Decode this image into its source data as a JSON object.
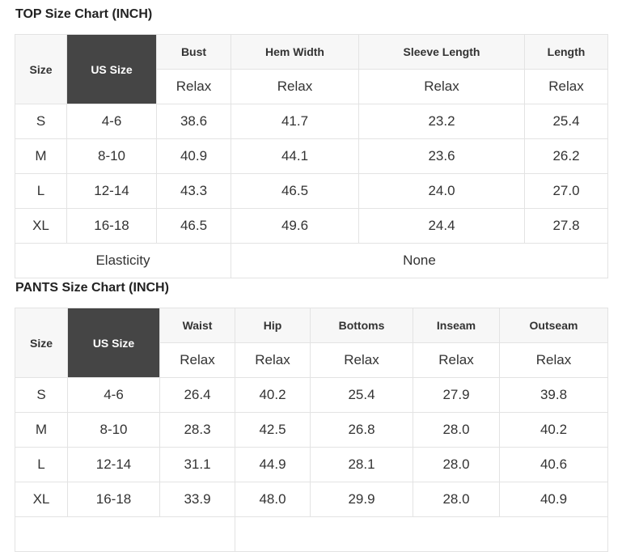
{
  "top": {
    "title": "TOP Size Chart (INCH)",
    "size_label": "Size",
    "us_label": "US Size",
    "columns": [
      "Bust",
      "Hem Width",
      "Sleeve Length",
      "Length"
    ],
    "fit": [
      "Relax",
      "Relax",
      "Relax",
      "Relax"
    ],
    "rows": [
      [
        "S",
        "4-6",
        "38.6",
        "41.7",
        "23.2",
        "25.4"
      ],
      [
        "M",
        "8-10",
        "40.9",
        "44.1",
        "23.6",
        "26.2"
      ],
      [
        "L",
        "12-14",
        "43.3",
        "46.5",
        "24.0",
        "27.0"
      ],
      [
        "XL",
        "16-18",
        "46.5",
        "49.6",
        "24.4",
        "27.8"
      ]
    ],
    "elasticity_label": "Elasticity",
    "elasticity_value": "None"
  },
  "pants": {
    "title": "PANTS Size Chart (INCH)",
    "size_label": "Size",
    "us_label": "US Size",
    "columns": [
      "Waist",
      "Hip",
      "Bottoms",
      "Inseam",
      "Outseam"
    ],
    "fit": [
      "Relax",
      "Relax",
      "Relax",
      "Relax",
      "Relax"
    ],
    "rows": [
      [
        "S",
        "4-6",
        "26.4",
        "40.2",
        "25.4",
        "27.9",
        "39.8"
      ],
      [
        "M",
        "8-10",
        "28.3",
        "42.5",
        "26.8",
        "28.0",
        "40.2"
      ],
      [
        "L",
        "12-14",
        "31.1",
        "44.9",
        "28.1",
        "28.0",
        "40.6"
      ],
      [
        "XL",
        "16-18",
        "33.9",
        "48.0",
        "29.9",
        "28.0",
        "40.9"
      ]
    ]
  }
}
